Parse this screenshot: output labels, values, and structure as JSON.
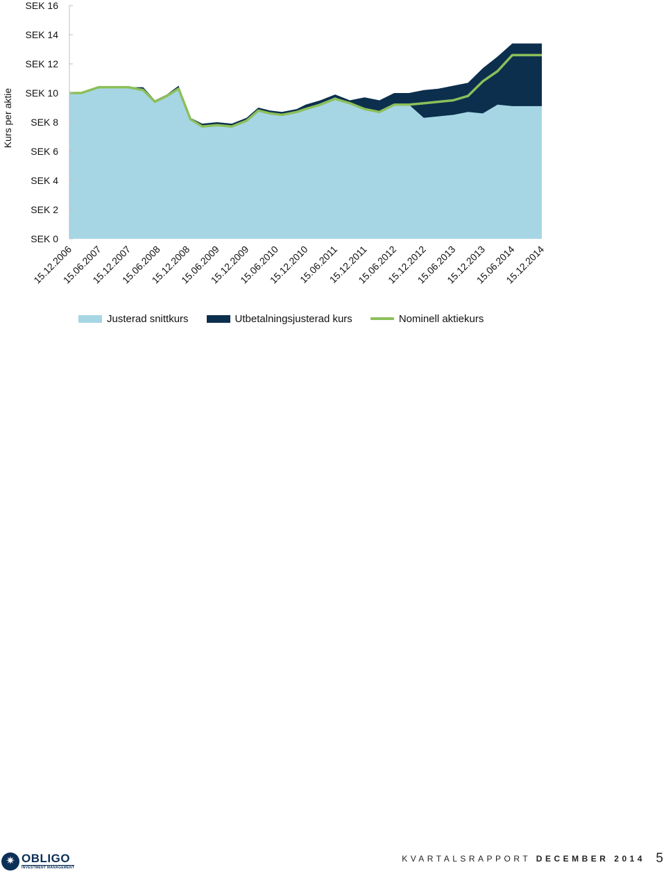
{
  "chart_data": {
    "type": "area",
    "ylabel": "Kurs per aktie",
    "ylim": [
      0,
      16
    ],
    "y_ticks": [
      "SEK 0",
      "SEK 2",
      "SEK 4",
      "SEK 6",
      "SEK 8",
      "SEK 10",
      "SEK 12",
      "SEK 14",
      "SEK 16"
    ],
    "x_ticks": [
      "15.12.2006",
      "15.06.2007",
      "15.12.2007",
      "15.06.2008",
      "15.12.2008",
      "15.06.2009",
      "15.12.2009",
      "15.06.2010",
      "15.12.2010",
      "15.06.2011",
      "15.12.2011",
      "15.06.2012",
      "15.12.2012",
      "15.06.2013",
      "15.12.2013",
      "15.06.2014",
      "15.12.2014"
    ],
    "x": [
      0,
      0.4,
      1,
      1.5,
      2,
      2.5,
      2.9,
      3.3,
      3.7,
      4.1,
      4.5,
      5,
      5.5,
      6,
      6.4,
      6.8,
      7.2,
      7.7,
      8,
      8.5,
      9,
      9.5,
      10,
      10.5,
      11,
      11.5,
      12,
      12.5,
      13,
      13.5,
      14,
      14.5,
      15,
      15.5,
      16
    ],
    "series": [
      {
        "name": "Justerad snittkurs",
        "color": "#a6d6e4",
        "values": [
          10,
          10,
          10.4,
          10.4,
          10.4,
          10.3,
          9.4,
          9.8,
          10.3,
          8.2,
          7.7,
          7.8,
          7.7,
          8.1,
          8.8,
          8.6,
          8.5,
          8.7,
          8.9,
          9.3,
          9.7,
          9.3,
          8.9,
          8.7,
          9.2,
          9.2,
          8.3,
          8.4,
          8.5,
          8.7,
          8.6,
          9.2,
          9.1,
          9.1,
          9.1
        ]
      },
      {
        "name": "Utbetalningsjusterad kurs",
        "color": "#0c2f4e",
        "values": [
          10,
          10,
          10.4,
          10.4,
          10.4,
          10.4,
          9.5,
          9.9,
          10.5,
          8.3,
          7.9,
          8.0,
          7.9,
          8.3,
          9.0,
          8.8,
          8.7,
          8.9,
          9.2,
          9.5,
          9.9,
          9.5,
          9.7,
          9.5,
          10.0,
          10.0,
          10.2,
          10.3,
          10.5,
          10.7,
          11.7,
          12.5,
          13.4,
          13.4,
          13.4
        ]
      },
      {
        "name": "Nominell aktiekurs",
        "color": "#8cbf5a",
        "values": [
          10,
          10,
          10.4,
          10.4,
          10.4,
          10.2,
          9.4,
          9.8,
          10.3,
          8.2,
          7.7,
          7.8,
          7.7,
          8.1,
          8.8,
          8.6,
          8.5,
          8.7,
          8.9,
          9.2,
          9.6,
          9.3,
          8.9,
          8.7,
          9.2,
          9.2,
          9.3,
          9.4,
          9.5,
          9.8,
          10.8,
          11.5,
          12.6,
          12.6,
          12.6
        ]
      }
    ],
    "legend": [
      {
        "label": "Justerad snittkurs",
        "color": "#a6d6e4",
        "kind": "fill"
      },
      {
        "label": "Utbetalningsjusterad kurs",
        "color": "#0c2f4e",
        "kind": "fill"
      },
      {
        "label": "Nominell aktiekurs",
        "color": "#8cbf5a",
        "kind": "line"
      }
    ],
    "legend_position": "bottom",
    "grid": false
  },
  "footer": {
    "logo_name": "OBLIGO",
    "logo_sub": "INVESTMENT MANAGEMENT",
    "report_label": "KVARTALSRAPPORT",
    "report_period": "DECEMBER 2014",
    "page_number": "5"
  }
}
